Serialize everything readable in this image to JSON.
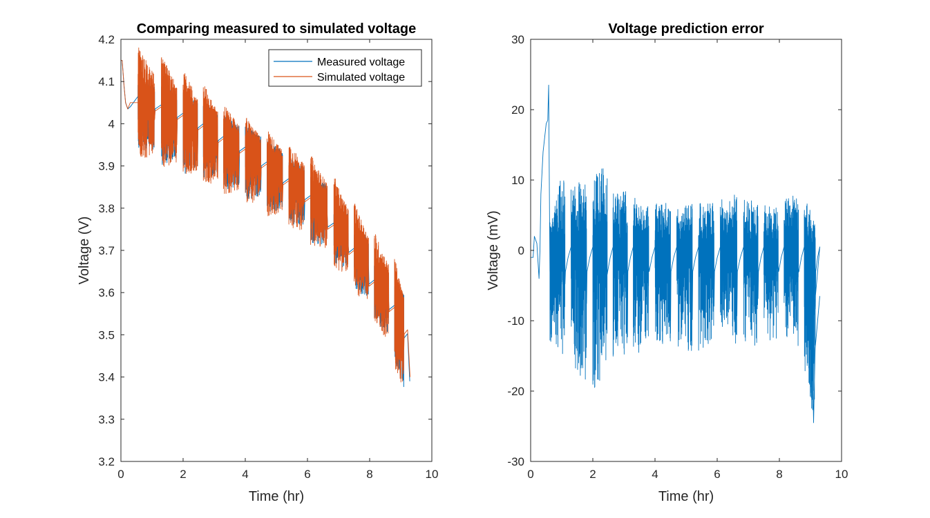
{
  "chart_data": [
    {
      "type": "line",
      "title": "Comparing measured to simulated voltage",
      "xlabel": "Time (hr)",
      "ylabel": "Voltage (V)",
      "xlim": [
        0,
        10
      ],
      "ylim": [
        3.2,
        4.2
      ],
      "xticks": [
        "0",
        "2",
        "4",
        "6",
        "8",
        "10"
      ],
      "yticks": [
        "3.2",
        "3.3",
        "3.4",
        "3.5",
        "3.6",
        "3.7",
        "3.8",
        "3.9",
        "4",
        "4.1",
        "4.2"
      ],
      "grid": false,
      "legend_location": "top-right",
      "series": [
        {
          "name": "Measured voltage",
          "color": "#0072BD",
          "rest_points": [
            [
              0.0,
              4.15
            ],
            [
              0.04,
              4.15
            ],
            [
              0.1,
              4.09
            ],
            [
              0.15,
              4.05
            ],
            [
              0.22,
              4.035
            ],
            [
              0.3,
              4.04
            ],
            [
              0.55,
              4.065
            ],
            [
              1.3,
              4.045
            ],
            [
              2.0,
              4.025
            ],
            [
              2.65,
              4.0
            ],
            [
              3.3,
              3.97
            ],
            [
              4.0,
              3.945
            ],
            [
              4.7,
              3.91
            ],
            [
              5.4,
              3.87
            ],
            [
              6.1,
              3.83
            ],
            [
              6.85,
              3.765
            ],
            [
              7.5,
              3.705
            ],
            [
              8.15,
              3.63
            ],
            [
              8.8,
              3.57
            ],
            [
              9.2,
              3.535
            ],
            [
              9.29,
              3.39
            ]
          ],
          "min_envelope": [
            [
              0.55,
              3.93
            ],
            [
              1.3,
              3.9
            ],
            [
              2.0,
              3.88
            ],
            [
              2.65,
              3.86
            ],
            [
              3.3,
              3.84
            ],
            [
              4.0,
              3.82
            ],
            [
              4.7,
              3.79
            ],
            [
              5.4,
              3.76
            ],
            [
              6.1,
              3.72
            ],
            [
              6.85,
              3.67
            ],
            [
              7.5,
              3.61
            ],
            [
              8.15,
              3.54
            ],
            [
              8.8,
              3.44
            ],
            [
              9.1,
              3.32
            ],
            [
              9.2,
              3.25
            ]
          ]
        },
        {
          "name": "Simulated voltage",
          "color": "#D95319",
          "rest_points": [
            [
              0.0,
              4.15
            ],
            [
              0.04,
              4.15
            ],
            [
              0.1,
              4.09
            ],
            [
              0.15,
              4.05
            ],
            [
              0.22,
              4.035
            ],
            [
              0.3,
              4.05
            ],
            [
              0.55,
              4.05
            ],
            [
              1.3,
              4.04
            ],
            [
              2.0,
              4.02
            ],
            [
              2.65,
              3.995
            ],
            [
              3.3,
              3.965
            ],
            [
              4.0,
              3.94
            ],
            [
              4.7,
              3.905
            ],
            [
              5.4,
              3.865
            ],
            [
              6.1,
              3.825
            ],
            [
              6.85,
              3.76
            ],
            [
              7.5,
              3.7
            ],
            [
              8.15,
              3.625
            ],
            [
              8.8,
              3.565
            ],
            [
              9.2,
              3.54
            ],
            [
              9.3,
              3.4
            ]
          ],
          "max_envelope": [
            [
              0.55,
              4.19
            ],
            [
              1.3,
              4.17
            ],
            [
              2.0,
              4.13
            ],
            [
              2.65,
              4.1
            ],
            [
              3.3,
              4.05
            ],
            [
              4.0,
              4.02
            ],
            [
              4.7,
              3.99
            ],
            [
              5.4,
              3.96
            ],
            [
              6.1,
              3.93
            ],
            [
              6.85,
              3.88
            ],
            [
              7.5,
              3.82
            ],
            [
              8.15,
              3.75
            ],
            [
              8.8,
              3.69
            ],
            [
              9.1,
              3.62
            ]
          ],
          "min_envelope": [
            [
              0.55,
              3.91
            ],
            [
              1.3,
              3.89
            ],
            [
              2.0,
              3.87
            ],
            [
              2.65,
              3.85
            ],
            [
              3.3,
              3.83
            ],
            [
              4.0,
              3.81
            ],
            [
              4.7,
              3.78
            ],
            [
              5.4,
              3.75
            ],
            [
              6.1,
              3.71
            ],
            [
              6.85,
              3.66
            ],
            [
              7.5,
              3.6
            ],
            [
              8.15,
              3.53
            ],
            [
              8.8,
              3.42
            ],
            [
              9.1,
              3.33
            ],
            [
              9.2,
              3.28
            ]
          ]
        }
      ]
    },
    {
      "type": "line",
      "title": "Voltage prediction error",
      "xlabel": "Time (hr)",
      "ylabel": "Voltage (mV)",
      "xlim": [
        0,
        10
      ],
      "ylim": [
        -30,
        30
      ],
      "xticks": [
        "0",
        "2",
        "4",
        "6",
        "8",
        "10"
      ],
      "yticks": [
        "-30",
        "-20",
        "-10",
        "0",
        "10",
        "20",
        "30"
      ],
      "grid": false,
      "series": [
        {
          "color": "#0072BD",
          "initial_points": [
            [
              0.0,
              -1
            ],
            [
              0.08,
              -1
            ],
            [
              0.12,
              2
            ],
            [
              0.2,
              1
            ],
            [
              0.27,
              -4
            ],
            [
              0.3,
              0
            ],
            [
              0.33,
              8
            ],
            [
              0.4,
              14
            ],
            [
              0.5,
              18
            ],
            [
              0.55,
              18.5
            ],
            [
              0.58,
              23.5
            ],
            [
              0.6,
              10
            ],
            [
              0.62,
              -3
            ]
          ],
          "max_envelope": [
            [
              0.7,
              5
            ],
            [
              1.0,
              11
            ],
            [
              1.5,
              10
            ],
            [
              2.0,
              10
            ],
            [
              2.3,
              12.5
            ],
            [
              2.7,
              8
            ],
            [
              3.2,
              9
            ],
            [
              3.6,
              6
            ],
            [
              4.2,
              7
            ],
            [
              4.8,
              6
            ],
            [
              5.4,
              7
            ],
            [
              6.0,
              7
            ],
            [
              6.6,
              8
            ],
            [
              7.2,
              7
            ],
            [
              7.8,
              6
            ],
            [
              8.4,
              8
            ],
            [
              8.9,
              7
            ],
            [
              9.1,
              5
            ]
          ],
          "min_envelope": [
            [
              0.7,
              -13
            ],
            [
              1.2,
              -16
            ],
            [
              1.8,
              -19
            ],
            [
              2.3,
              -20
            ],
            [
              2.6,
              -16
            ],
            [
              3.2,
              -15
            ],
            [
              3.8,
              -14
            ],
            [
              4.4,
              -13
            ],
            [
              5.0,
              -15
            ],
            [
              5.6,
              -14
            ],
            [
              6.2,
              -12
            ],
            [
              6.8,
              -15
            ],
            [
              7.4,
              -13
            ],
            [
              8.0,
              -13
            ],
            [
              8.5,
              -12
            ],
            [
              8.9,
              -19
            ],
            [
              9.1,
              -25
            ],
            [
              9.2,
              -12
            ],
            [
              9.3,
              -7
            ]
          ]
        }
      ]
    }
  ]
}
